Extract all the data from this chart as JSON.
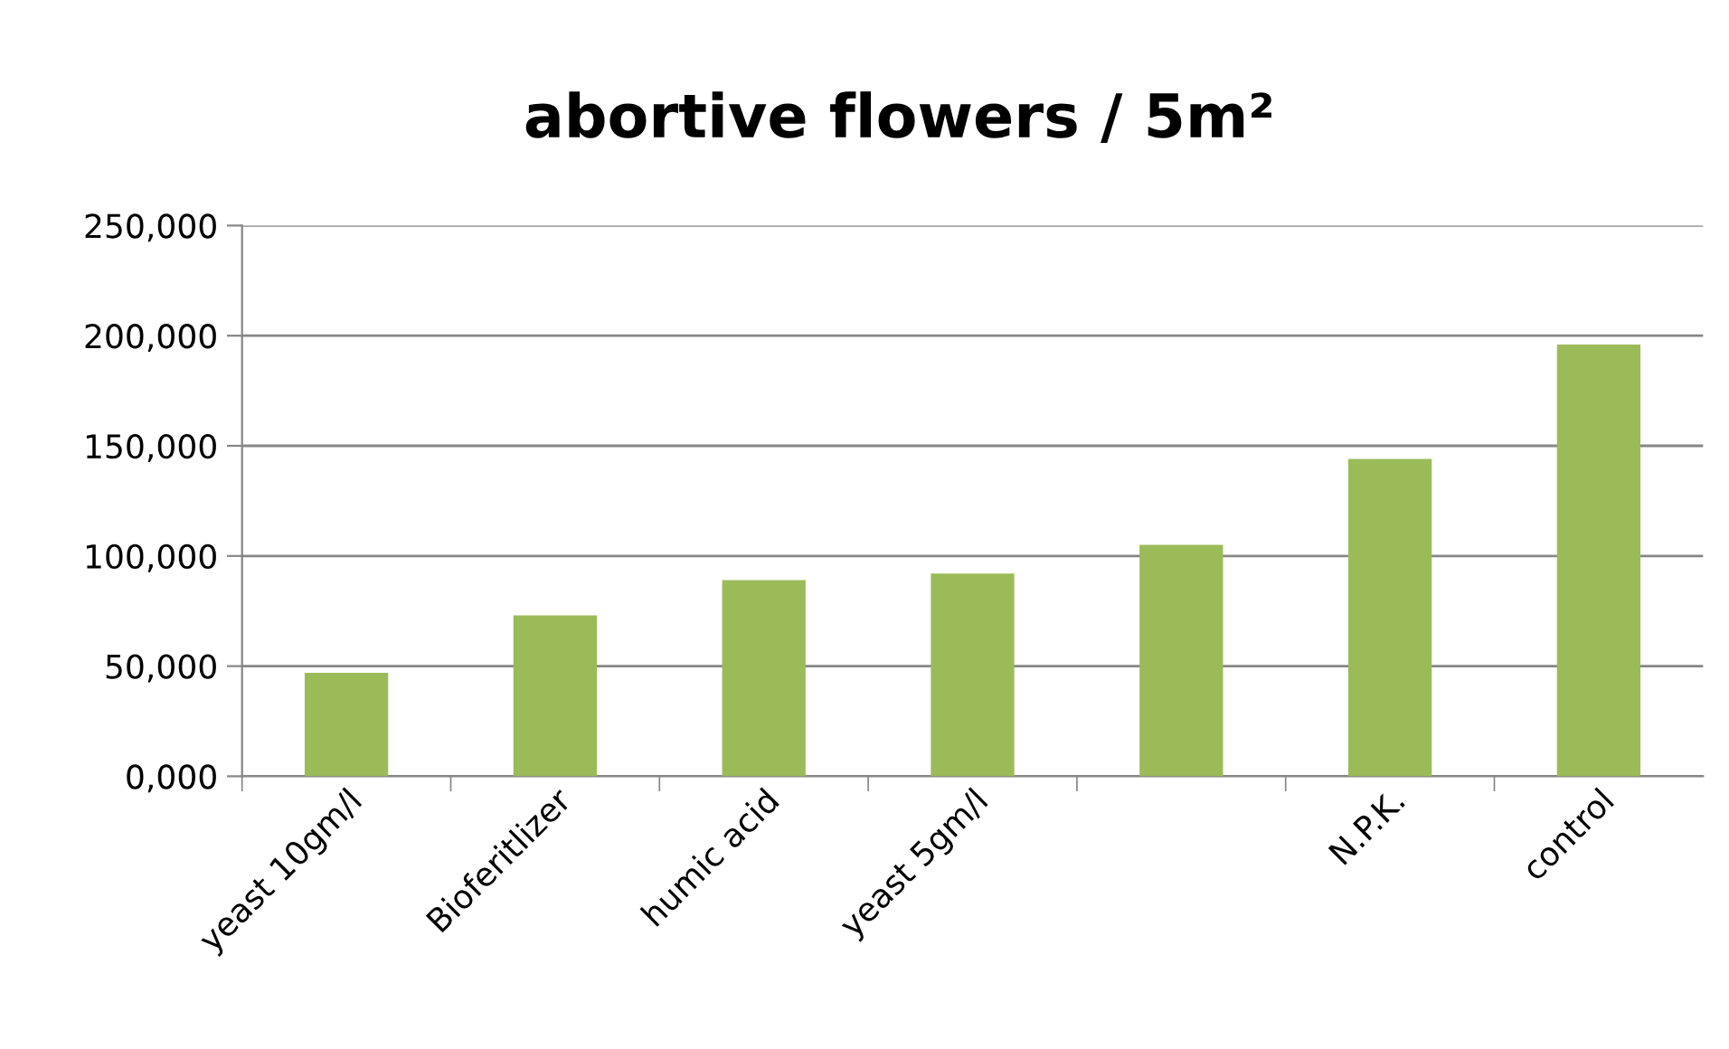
{
  "chart_data": {
    "type": "bar",
    "title": "abortive flowers / 5m²",
    "categories": [
      "yeast 10gm/l",
      "Bioferitlizer",
      "humic acid",
      "yeast 5gm/l",
      null,
      "N.P.K.",
      "control"
    ],
    "values": [
      47000,
      73000,
      89000,
      92000,
      105000,
      144000,
      196000
    ],
    "color": "#9bbb59",
    "ylim": [
      0,
      250000
    ],
    "yticks": [
      {
        "value": 0,
        "label": "0,000"
      },
      {
        "value": 50000,
        "label": "50,000"
      },
      {
        "value": 100000,
        "label": "100,000"
      },
      {
        "value": 150000,
        "label": "150,000"
      },
      {
        "value": 200000,
        "label": "200,000"
      },
      {
        "value": 250000,
        "label": "250,000"
      }
    ],
    "grid": "y",
    "legend": false
  }
}
